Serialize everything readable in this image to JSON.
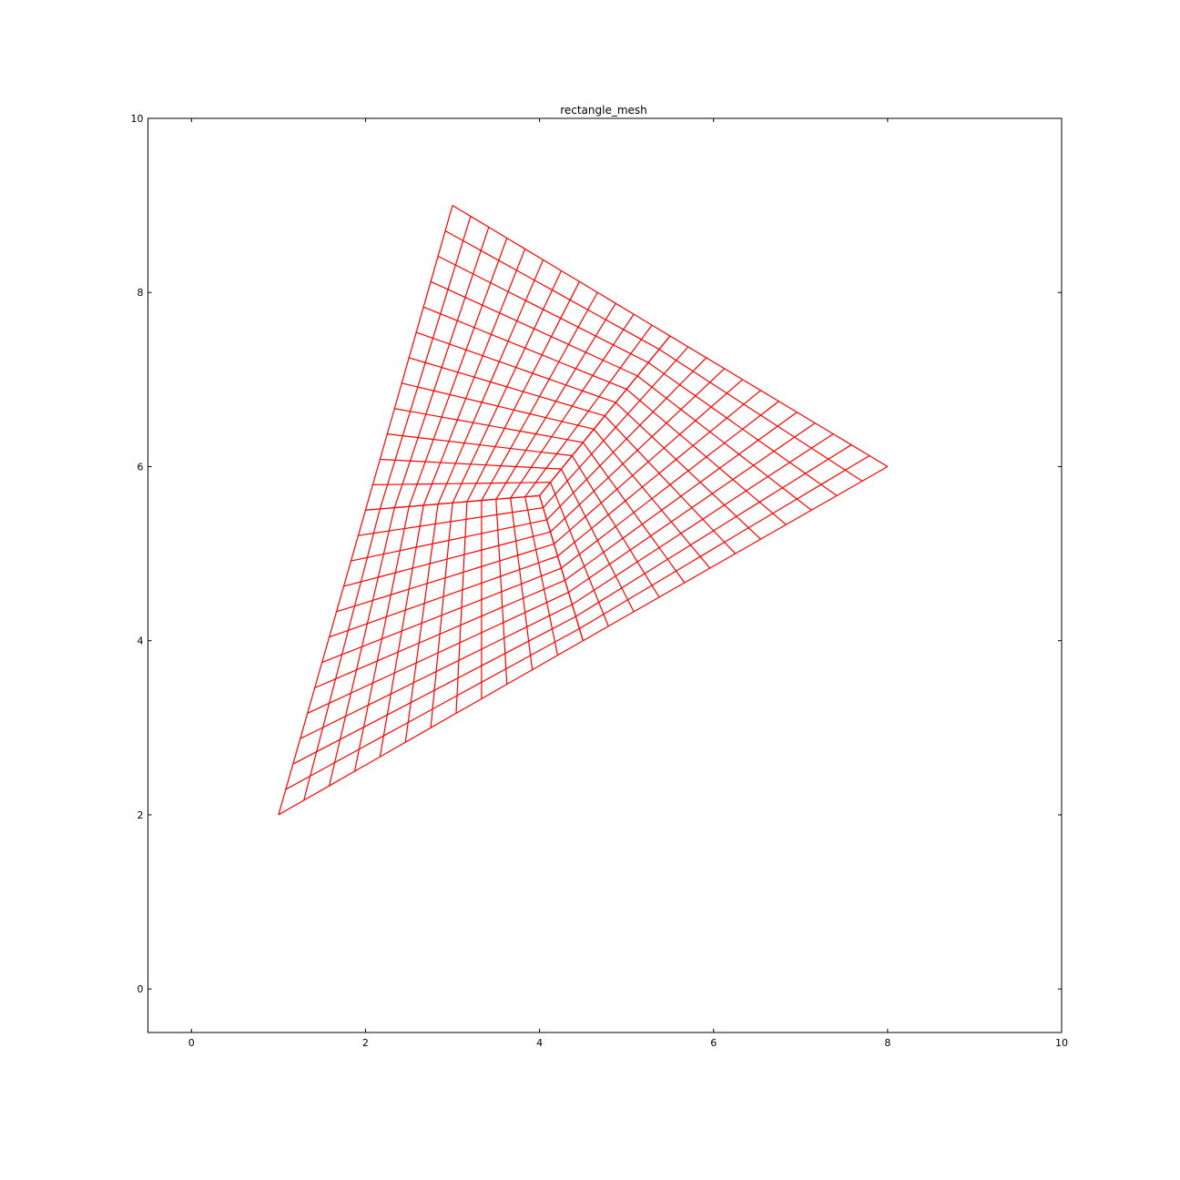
{
  "chart_data": {
    "type": "mesh",
    "title": "rectangle_mesh",
    "xlabel": "",
    "ylabel": "",
    "xlim": [
      -0.5,
      10
    ],
    "ylim": [
      -0.5,
      10
    ],
    "xticks": [
      0,
      2,
      4,
      6,
      8,
      10
    ],
    "yticks": [
      0,
      2,
      4,
      6,
      8,
      10
    ],
    "xtick_labels": [
      "0",
      "2",
      "4",
      "6",
      "8",
      "10"
    ],
    "ytick_labels": [
      "0",
      "2",
      "4",
      "6",
      "8",
      "10"
    ],
    "grid": false,
    "mesh_color": "#ff0000",
    "triangle_vertices": [
      [
        1,
        2
      ],
      [
        8,
        6
      ],
      [
        3,
        9
      ]
    ],
    "cells_per_edge_segment": 12,
    "description_of_subdivision": ""
  }
}
